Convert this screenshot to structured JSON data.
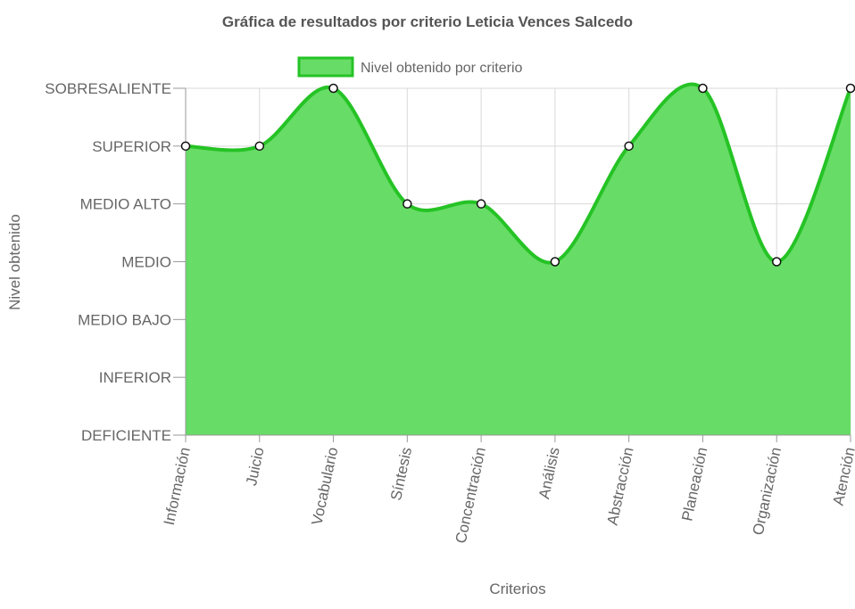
{
  "chart_data": {
    "type": "area",
    "title": "Gráfica de resultados por criterio Leticia Vences Salcedo",
    "xlabel": "Criterios",
    "ylabel": "Nivel obtenido",
    "legend": {
      "position": "top-center",
      "label": "Nivel obtenido por criterio"
    },
    "y_levels": [
      "DEFICIENTE",
      "INFERIOR",
      "MEDIO BAJO",
      "MEDIO",
      "MEDIO ALTO",
      "SUPERIOR",
      "SOBRESALIENTE"
    ],
    "ylim": [
      0,
      6
    ],
    "grid": true,
    "categories": [
      "Información",
      "Juicio",
      "Vocabulario",
      "Síntesis",
      "Concentración",
      "Análisis",
      "Abstracción",
      "Planeación",
      "Organización",
      "Atención"
    ],
    "series": [
      {
        "name": "Nivel obtenido por criterio",
        "values": [
          5,
          5,
          6,
          4,
          4,
          3,
          5,
          6,
          3,
          6
        ]
      }
    ],
    "colors": {
      "fill": "#67dc66",
      "line": "#25c325",
      "point_fill": "#ffffff",
      "point_stroke": "#111111",
      "grid": "#d9d9d9",
      "axis": "#9a9a9a",
      "text": "#666666",
      "title": "#555555"
    }
  }
}
